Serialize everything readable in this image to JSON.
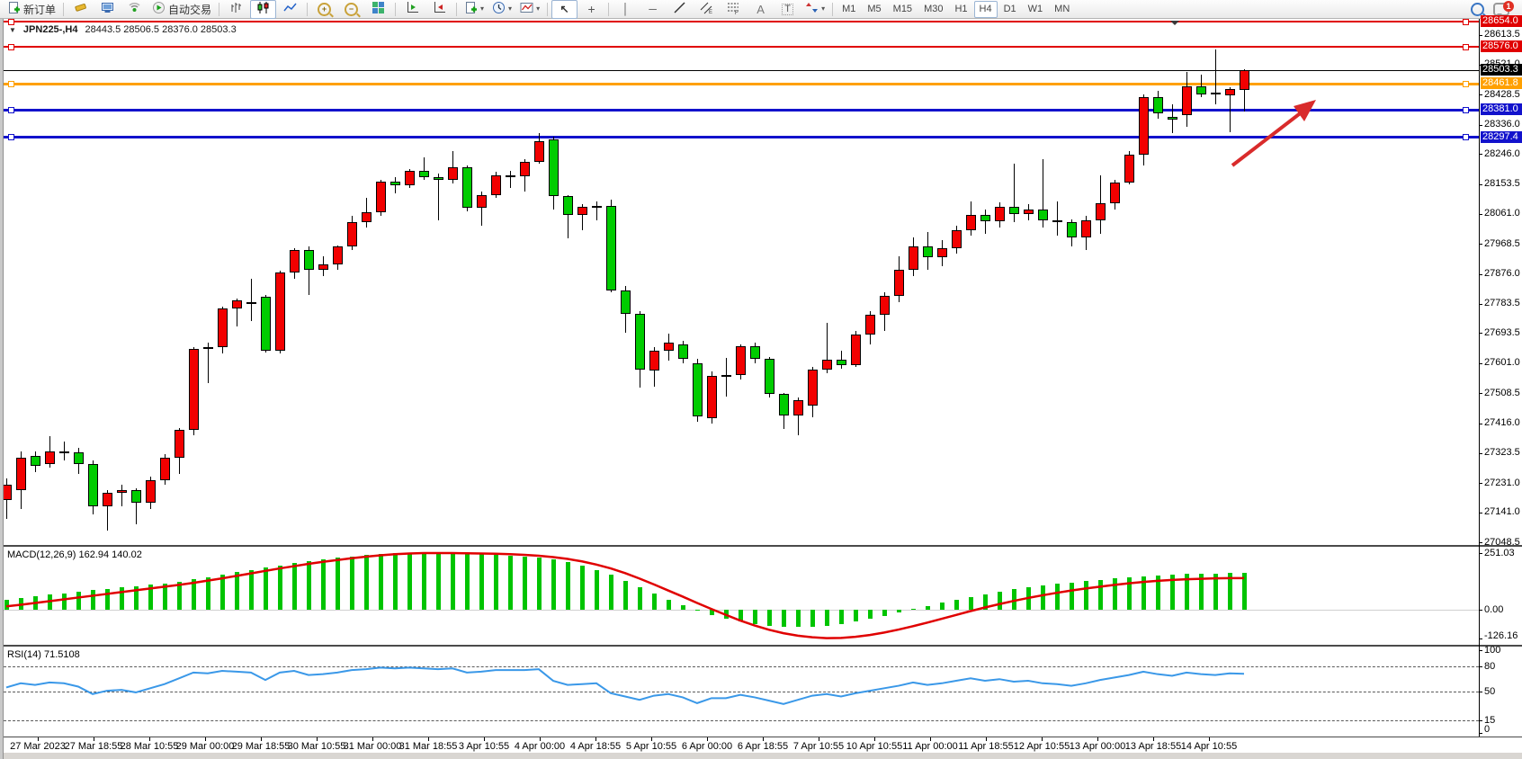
{
  "toolbar": {
    "new_order_label": "新订单",
    "auto_trading_label": "自动交易",
    "timeframes": [
      "M1",
      "M5",
      "M15",
      "M30",
      "H1",
      "H4",
      "D1",
      "W1",
      "MN"
    ],
    "active_timeframe": "H4",
    "notification_badge": "1",
    "icon_glyphs": {
      "plus": "+",
      "play": "▶",
      "cursor": "↖",
      "crosshair": "+",
      "vline": "│",
      "hline": "─",
      "caret": "▾",
      "channel_letter": "E",
      "fibo_letter": "F",
      "text_a": "A",
      "text_t": "T",
      "zoom_in": "+",
      "zoom_out": "−"
    },
    "items": [
      {
        "kind": "btn",
        "name": "new-order-button",
        "icon": "docplus",
        "label": "新订单"
      },
      {
        "kind": "sep"
      },
      {
        "kind": "btn",
        "name": "styles-button",
        "icon": "brush"
      },
      {
        "kind": "btn",
        "name": "terminal-button",
        "icon": "monitor"
      },
      {
        "kind": "btn",
        "name": "signals-button",
        "icon": "signal"
      },
      {
        "kind": "btn",
        "name": "auto-trading-button",
        "icon": "autotrade",
        "label": "自动交易"
      },
      {
        "kind": "sep"
      },
      {
        "kind": "btn",
        "name": "bar-chart-button",
        "icon": "bars"
      },
      {
        "kind": "btn",
        "name": "candlestick-chart-button",
        "icon": "candles",
        "active": true
      },
      {
        "kind": "btn",
        "name": "line-chart-button",
        "icon": "linechart"
      },
      {
        "kind": "sep"
      },
      {
        "kind": "btn",
        "name": "zoom-in-button",
        "icon": "zoomin"
      },
      {
        "kind": "btn",
        "name": "zoom-out-button",
        "icon": "zoomout"
      },
      {
        "kind": "btn",
        "name": "tile-windows-button",
        "icon": "tile"
      },
      {
        "kind": "sep"
      },
      {
        "kind": "btn",
        "name": "auto-scroll-button",
        "icon": "autoscroll"
      },
      {
        "kind": "btn",
        "name": "chart-shift-button",
        "icon": "chartshift"
      },
      {
        "kind": "sep"
      },
      {
        "kind": "btn",
        "name": "templates-button",
        "icon": "docplus",
        "dropdown": true
      },
      {
        "kind": "btn",
        "name": "periods-button",
        "icon": "clock",
        "dropdown": true
      },
      {
        "kind": "btn",
        "name": "indicators-button",
        "icon": "indicator",
        "dropdown": true
      },
      {
        "kind": "sep"
      },
      {
        "kind": "btn",
        "name": "cursor-button",
        "icon": "cursor",
        "active": true
      },
      {
        "kind": "btn",
        "name": "crosshair-button",
        "icon": "crosshair"
      },
      {
        "kind": "sep"
      },
      {
        "kind": "btn",
        "name": "vertical-line-button",
        "icon": "vline"
      },
      {
        "kind": "btn",
        "name": "horizontal-line-button",
        "icon": "hline"
      },
      {
        "kind": "btn",
        "name": "trendline-button",
        "icon": "tline"
      },
      {
        "kind": "btn",
        "name": "equidistant-channel-button",
        "icon": "channel"
      },
      {
        "kind": "btn",
        "name": "fibonacci-button",
        "icon": "fibo"
      },
      {
        "kind": "btn",
        "name": "text-button",
        "icon": "textA"
      },
      {
        "kind": "btn",
        "name": "text-label-button",
        "icon": "textT"
      },
      {
        "kind": "btn",
        "name": "arrows-button",
        "icon": "shapes",
        "dropdown": true
      },
      {
        "kind": "sep"
      }
    ]
  },
  "chart": {
    "collapse_glyph": "▼",
    "symbol_period": "JPN225-,H4",
    "ohlc_text": "28443.5 28506.5 28376.0 28503.3"
  },
  "price_axis": {
    "ticks": [
      {
        "text": "28613.5",
        "v": 28613.5
      },
      {
        "text": "28521.0",
        "v": 28521.0
      },
      {
        "text": "28428.5",
        "v": 28428.5
      },
      {
        "text": "28336.0",
        "v": 28336.0
      },
      {
        "text": "28246.0",
        "v": 28246.0
      },
      {
        "text": "28153.5",
        "v": 28153.5
      },
      {
        "text": "28061.0",
        "v": 28061.0
      },
      {
        "text": "27968.5",
        "v": 27968.5
      },
      {
        "text": "27876.0",
        "v": 27876.0
      },
      {
        "text": "27783.5",
        "v": 27783.5
      },
      {
        "text": "27693.5",
        "v": 27693.5
      },
      {
        "text": "27601.0",
        "v": 27601.0
      },
      {
        "text": "27508.5",
        "v": 27508.5
      },
      {
        "text": "27416.0",
        "v": 27416.0
      },
      {
        "text": "27323.5",
        "v": 27323.5
      },
      {
        "text": "27231.0",
        "v": 27231.0
      },
      {
        "text": "27141.0",
        "v": 27141.0
      },
      {
        "text": "27048.5",
        "v": 27048.5
      }
    ],
    "current_price": {
      "text": "28503.3",
      "v": 28503.3,
      "bg": "#000000",
      "fg": "#ffffff"
    }
  },
  "levels": [
    {
      "text": "28654.0",
      "v": 28654.0,
      "color": "#e00000",
      "thickness": 2
    },
    {
      "text": "28576.0",
      "v": 28576.0,
      "color": "#e00000",
      "thickness": 2
    },
    {
      "text": "28461.8",
      "v": 28461.8,
      "color": "#ffa000",
      "thickness": 3
    },
    {
      "text": "28381.0",
      "v": 28381.0,
      "color": "#1212cc",
      "thickness": 3
    },
    {
      "text": "28297.4",
      "v": 28297.4,
      "color": "#1212cc",
      "thickness": 3
    }
  ],
  "time_axis": {
    "labels": [
      "27 Mar 2023",
      "27 Mar 18:55",
      "28 Mar 10:55",
      "29 Mar 00:00",
      "29 Mar 18:55",
      "30 Mar 10:55",
      "31 Mar 00:00",
      "31 Mar 18:55",
      "3 Apr 10:55",
      "4 Apr 00:00",
      "4 Apr 18:55",
      "5 Apr 10:55",
      "6 Apr 00:00",
      "6 Apr 18:55",
      "7 Apr 10:55",
      "10 Apr 10:55",
      "11 Apr 00:00",
      "11 Apr 18:55",
      "12 Apr 10:55",
      "13 Apr 00:00",
      "13 Apr 18:55",
      "14 Apr 10:55"
    ]
  },
  "indicators": {
    "macd": {
      "label": "MACD(12,26,9) 162.94 140.02",
      "axis": [
        {
          "text": "251.03",
          "v": 251.03
        },
        {
          "text": "0.00",
          "v": 0
        },
        {
          "text": "-126.16",
          "v": -126.16
        }
      ]
    },
    "rsi": {
      "label": "RSI(14) 71.5108",
      "axis": [
        {
          "text": "100",
          "v": 100
        },
        {
          "text": "80",
          "v": 80
        },
        {
          "text": "50",
          "v": 50
        },
        {
          "text": "15",
          "v": 15
        },
        {
          "text": "0",
          "v": 0
        }
      ],
      "dashed_levels": [
        80,
        50,
        15
      ]
    }
  },
  "chart_data": {
    "type": "candlestick",
    "symbol": "JPN225-",
    "timeframe": "H4",
    "title": "JPN225-,H4 28443.5 28506.5 28376.0 28503.3",
    "last_bar": {
      "open": 28443.5,
      "high": 28506.5,
      "low": 28376.0,
      "close": 28503.3
    },
    "price_range": {
      "top": 28654.0,
      "bottom": 27048.5
    },
    "bull_color": "#f20000",
    "bear_color": "#00cc00",
    "horizontal_levels": [
      28654.0,
      28576.0,
      28461.8,
      28381.0,
      28297.4
    ],
    "candles_ohlc": [
      [
        27180,
        27245,
        27120,
        27225
      ],
      [
        27210,
        27330,
        27150,
        27310
      ],
      [
        27315,
        27330,
        27265,
        27285
      ],
      [
        27290,
        27375,
        27280,
        27330
      ],
      [
        27330,
        27360,
        27300,
        27325
      ],
      [
        27325,
        27340,
        27260,
        27290
      ],
      [
        27290,
        27300,
        27135,
        27160
      ],
      [
        27160,
        27210,
        27085,
        27200
      ],
      [
        27200,
        27225,
        27160,
        27210
      ],
      [
        27210,
        27215,
        27105,
        27170
      ],
      [
        27170,
        27250,
        27150,
        27240
      ],
      [
        27240,
        27320,
        27225,
        27310
      ],
      [
        27310,
        27400,
        27260,
        27395
      ],
      [
        27395,
        27650,
        27380,
        27645
      ],
      [
        27645,
        27665,
        27540,
        27650
      ],
      [
        27650,
        27775,
        27630,
        27770
      ],
      [
        27770,
        27800,
        27715,
        27795
      ],
      [
        27790,
        27860,
        27730,
        27788
      ],
      [
        27805,
        27810,
        27635,
        27640
      ],
      [
        27640,
        27885,
        27630,
        27880
      ],
      [
        27880,
        27955,
        27860,
        27950
      ],
      [
        27950,
        27960,
        27810,
        27890
      ],
      [
        27890,
        27930,
        27870,
        27905
      ],
      [
        27905,
        27965,
        27890,
        27960
      ],
      [
        27960,
        28055,
        27950,
        28035
      ],
      [
        28035,
        28110,
        28020,
        28065
      ],
      [
        28065,
        28165,
        28055,
        28160
      ],
      [
        28160,
        28175,
        28125,
        28150
      ],
      [
        28150,
        28200,
        28140,
        28195
      ],
      [
        28195,
        28235,
        28165,
        28175
      ],
      [
        28175,
        28185,
        28040,
        28165
      ],
      [
        28165,
        28255,
        28155,
        28205
      ],
      [
        28205,
        28210,
        28070,
        28080
      ],
      [
        28080,
        28130,
        28025,
        28120
      ],
      [
        28120,
        28190,
        28110,
        28180
      ],
      [
        28180,
        28195,
        28140,
        28178
      ],
      [
        28178,
        28230,
        28130,
        28222
      ],
      [
        28222,
        28310,
        28215,
        28285
      ],
      [
        28290,
        28300,
        28074,
        28115
      ],
      [
        28115,
        28120,
        27985,
        28057
      ],
      [
        28057,
        28090,
        28010,
        28082
      ],
      [
        28082,
        28100,
        28040,
        28086
      ],
      [
        28086,
        28105,
        27820,
        27824
      ],
      [
        27824,
        27840,
        27694,
        27752
      ],
      [
        27752,
        27760,
        27525,
        27581
      ],
      [
        27578,
        27650,
        27528,
        27640
      ],
      [
        27640,
        27692,
        27610,
        27665
      ],
      [
        27658,
        27670,
        27600,
        27614
      ],
      [
        27600,
        27615,
        27420,
        27438
      ],
      [
        27430,
        27575,
        27415,
        27562
      ],
      [
        27562,
        27618,
        27498,
        27565
      ],
      [
        27565,
        27660,
        27550,
        27652
      ],
      [
        27652,
        27665,
        27600,
        27615
      ],
      [
        27615,
        27620,
        27495,
        27505
      ],
      [
        27505,
        27510,
        27398,
        27440
      ],
      [
        27440,
        27495,
        27380,
        27488
      ],
      [
        27470,
        27590,
        27435,
        27580
      ],
      [
        27580,
        27725,
        27570,
        27612
      ],
      [
        27612,
        27640,
        27585,
        27596
      ],
      [
        27596,
        27700,
        27590,
        27688
      ],
      [
        27688,
        27760,
        27660,
        27750
      ],
      [
        27750,
        27820,
        27700,
        27808
      ],
      [
        27808,
        27930,
        27790,
        27890
      ],
      [
        27890,
        27990,
        27870,
        27962
      ],
      [
        27962,
        28005,
        27890,
        27928
      ],
      [
        27928,
        27980,
        27900,
        27955
      ],
      [
        27955,
        28025,
        27940,
        28012
      ],
      [
        28012,
        28100,
        27995,
        28058
      ],
      [
        28058,
        28075,
        28000,
        28038
      ],
      [
        28038,
        28098,
        28020,
        28082
      ],
      [
        28082,
        28215,
        28035,
        28062
      ],
      [
        28062,
        28090,
        28040,
        28075
      ],
      [
        28075,
        28230,
        28020,
        28042
      ],
      [
        28042,
        28100,
        27995,
        28035
      ],
      [
        28035,
        28045,
        27960,
        27988
      ],
      [
        27988,
        28055,
        27950,
        28042
      ],
      [
        28042,
        28180,
        28000,
        28095
      ],
      [
        28095,
        28165,
        28075,
        28158
      ],
      [
        28158,
        28255,
        28152,
        28245
      ],
      [
        28245,
        28430,
        28210,
        28420
      ],
      [
        28420,
        28440,
        28355,
        28372
      ],
      [
        28360,
        28400,
        28310,
        28352
      ],
      [
        28365,
        28500,
        28330,
        28455
      ],
      [
        28455,
        28490,
        28420,
        28430
      ],
      [
        28434,
        28568,
        28398,
        28430
      ],
      [
        28428,
        28452,
        28312,
        28446
      ],
      [
        28443.5,
        28506.5,
        28376,
        28503.3
      ]
    ],
    "macd": {
      "params": "12,26,9",
      "main_value": 162.94,
      "signal_value": 140.02,
      "scale_max": 251.03,
      "scale_min": -126.16,
      "histogram": [
        42,
        50,
        58,
        66,
        73,
        80,
        86,
        92,
        98,
        104,
        110,
        117,
        125,
        134,
        144,
        155,
        166,
        177,
        187,
        197,
        207,
        216,
        224,
        231,
        237,
        243,
        247,
        250,
        251,
        250,
        249,
        248,
        247,
        246,
        244,
        241,
        237,
        231,
        222,
        210,
        195,
        176,
        154,
        128,
        100,
        72,
        45,
        20,
        -2,
        -22,
        -38,
        -52,
        -62,
        -70,
        -75,
        -77,
        -75,
        -70,
        -62,
        -52,
        -40,
        -26,
        -12,
        2,
        16,
        30,
        44,
        57,
        69,
        80,
        90,
        99,
        107,
        114,
        121,
        127,
        133,
        139,
        144,
        149,
        153,
        156,
        158,
        160,
        161,
        162,
        163
      ],
      "signal": [
        15,
        22,
        30,
        38,
        46,
        54,
        62,
        70,
        78,
        86,
        94,
        102,
        110,
        119,
        129,
        139,
        150,
        161,
        172,
        183,
        193,
        203,
        212,
        220,
        228,
        235,
        241,
        246,
        249,
        251,
        251,
        251,
        250,
        249,
        248,
        246,
        243,
        239,
        233,
        225,
        214,
        200,
        183,
        162,
        138,
        112,
        85,
        58,
        30,
        3,
        -23,
        -48,
        -70,
        -89,
        -104,
        -115,
        -122,
        -126,
        -125,
        -120,
        -112,
        -101,
        -88,
        -73,
        -57,
        -40,
        -23,
        -6,
        10,
        25,
        39,
        52,
        64,
        75,
        85,
        94,
        102,
        110,
        117,
        123,
        128,
        132,
        135,
        137,
        139,
        140,
        140
      ]
    },
    "rsi": {
      "period": 14,
      "value": 71.5108,
      "series": [
        55,
        60,
        58,
        61,
        60,
        56,
        47,
        51,
        52,
        49,
        54,
        59,
        66,
        73,
        72,
        75,
        74,
        73,
        64,
        73,
        75,
        70,
        71,
        73,
        76,
        77,
        79,
        78,
        79,
        78,
        77,
        78,
        73,
        74,
        76,
        76,
        76,
        77,
        63,
        58,
        59,
        60,
        48,
        44,
        40,
        45,
        47,
        43,
        36,
        42,
        42,
        46,
        43,
        39,
        35,
        40,
        45,
        47,
        44,
        48,
        51,
        54,
        57,
        61,
        58,
        60,
        63,
        66,
        63,
        65,
        62,
        63,
        60,
        59,
        57,
        60,
        64,
        67,
        70,
        74,
        71,
        69,
        73,
        71,
        70,
        72,
        71.5
      ]
    },
    "annotation_arrow_color": "#d92b2b"
  }
}
